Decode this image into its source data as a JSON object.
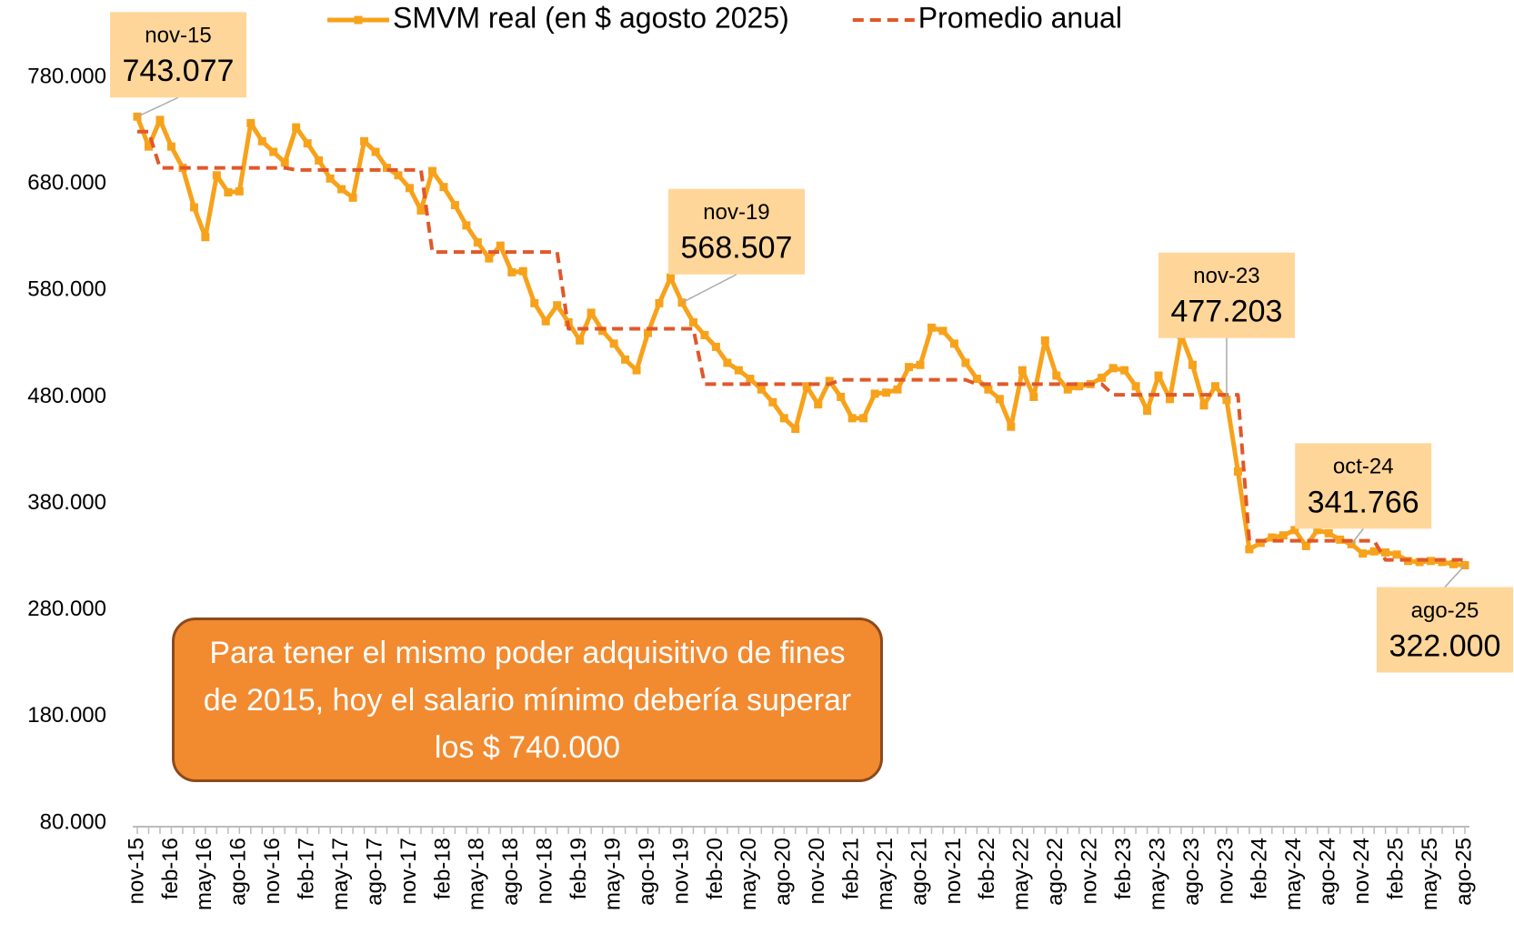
{
  "chart_data": {
    "type": "line",
    "categories": [
      "nov-15",
      null,
      null,
      "feb-16",
      null,
      null,
      "may-16",
      null,
      null,
      "ago-16",
      null,
      null,
      "nov-16",
      null,
      null,
      "feb-17",
      null,
      null,
      "may-17",
      null,
      null,
      "ago-17",
      null,
      null,
      "nov-17",
      null,
      null,
      "feb-18",
      null,
      null,
      "may-18",
      null,
      null,
      "ago-18",
      null,
      null,
      "nov-18",
      null,
      null,
      "feb-19",
      null,
      null,
      "may-19",
      null,
      null,
      "ago-19",
      null,
      null,
      "nov-19",
      null,
      null,
      "feb-20",
      null,
      null,
      "may-20",
      null,
      null,
      "ago-20",
      null,
      null,
      "nov-20",
      null,
      null,
      "feb-21",
      null,
      null,
      "may-21",
      null,
      null,
      "ago-21",
      null,
      null,
      "nov-21",
      null,
      null,
      "feb-22",
      null,
      null,
      "may-22",
      null,
      null,
      "ago-22",
      null,
      null,
      "nov-22",
      null,
      null,
      "feb-23",
      null,
      null,
      "may-23",
      null,
      null,
      "ago-23",
      null,
      null,
      "nov-23",
      null,
      null,
      "feb-24",
      null,
      null,
      "may-24",
      null,
      null,
      "ago-24",
      null,
      null,
      "nov-24",
      null,
      null,
      "feb-25",
      null,
      null,
      "may-25",
      null,
      null,
      "ago-25"
    ],
    "series": [
      {
        "name": "SMVM real (en $ agosto 2025)",
        "color": "#f7a21b",
        "marker": "square",
        "values": [
          743077,
          715000,
          740000,
          715000,
          695000,
          658000,
          630000,
          688000,
          672000,
          673000,
          737000,
          720000,
          710000,
          700000,
          733000,
          718000,
          702000,
          685000,
          675000,
          667000,
          720000,
          710000,
          695000,
          688000,
          676000,
          655000,
          692000,
          677000,
          660000,
          641000,
          625000,
          610000,
          622000,
          597000,
          598000,
          568000,
          551000,
          566000,
          550000,
          533000,
          559000,
          542000,
          530000,
          515000,
          505000,
          540000,
          568000,
          592000,
          568507,
          550000,
          538000,
          527000,
          512000,
          505000,
          497000,
          487000,
          475000,
          460000,
          450000,
          490000,
          473000,
          495000,
          480000,
          460000,
          460000,
          483000,
          484000,
          487000,
          508000,
          510000,
          545000,
          542000,
          530000,
          512000,
          497000,
          487000,
          478000,
          452000,
          505000,
          480000,
          533000,
          500000,
          487000,
          490000,
          492000,
          498000,
          507000,
          505000,
          490000,
          467000,
          500000,
          478000,
          538000,
          510000,
          472000,
          490000,
          477203,
          410000,
          337000,
          343000,
          348000,
          350000,
          355000,
          340000,
          355000,
          352000,
          346000,
          341766,
          333000,
          335000,
          334000,
          332000,
          326000,
          325000,
          326000,
          325000,
          323000,
          322000
        ],
        "point_labels": [
          "nov-15",
          null,
          null,
          null,
          null,
          null,
          null,
          null,
          null,
          null,
          null,
          null,
          null,
          null,
          null,
          null,
          null,
          null,
          null,
          null,
          null,
          null,
          null,
          null,
          null,
          null,
          null,
          null,
          null,
          null,
          null,
          null,
          null,
          null,
          null,
          null,
          null,
          null,
          null,
          null,
          null,
          null,
          null,
          null,
          null,
          null,
          null,
          null,
          "nov-19",
          null,
          null,
          null,
          null,
          null,
          null,
          null,
          null,
          null,
          null,
          null,
          null,
          null,
          null,
          null,
          null,
          null,
          null,
          null,
          null,
          null,
          null,
          null,
          null,
          null,
          null,
          null,
          null,
          null,
          null,
          null,
          null,
          null,
          null,
          null,
          null,
          null,
          null,
          null,
          null,
          null,
          null,
          null,
          null,
          null,
          null,
          null,
          "nov-23",
          null,
          null,
          null,
          null,
          null,
          null,
          null,
          null,
          null,
          null,
          "oct-24",
          null,
          null,
          null,
          null,
          null,
          null,
          null,
          null,
          null,
          "ago-25"
        ],
        "value_labels": [
          "743.077",
          null,
          null,
          null,
          null,
          null,
          null,
          null,
          null,
          null,
          null,
          null,
          null,
          null,
          null,
          null,
          null,
          null,
          null,
          null,
          null,
          null,
          null,
          null,
          null,
          null,
          null,
          null,
          null,
          null,
          null,
          null,
          null,
          null,
          null,
          null,
          null,
          null,
          null,
          null,
          null,
          null,
          null,
          null,
          null,
          null,
          null,
          null,
          "568.507",
          null,
          null,
          null,
          null,
          null,
          null,
          null,
          null,
          null,
          null,
          null,
          null,
          null,
          null,
          null,
          null,
          null,
          null,
          null,
          null,
          null,
          null,
          null,
          null,
          null,
          null,
          null,
          null,
          null,
          null,
          null,
          null,
          null,
          null,
          null,
          null,
          null,
          null,
          null,
          null,
          null,
          null,
          null,
          null,
          null,
          null,
          null,
          "477.203",
          null,
          null,
          null,
          null,
          null,
          null,
          null,
          null,
          null,
          null,
          "341.766",
          null,
          null,
          null,
          null,
          null,
          null,
          null,
          null,
          null,
          "322.000"
        ]
      },
      {
        "name": "Promedio anual",
        "color": "#e0582a",
        "dash": true,
        "values": [
          729000,
          729000,
          695000,
          695000,
          695000,
          695000,
          695000,
          695000,
          695000,
          695000,
          695000,
          695000,
          695000,
          695000,
          693000,
          693000,
          693000,
          693000,
          693000,
          693000,
          693000,
          693000,
          693000,
          693000,
          693000,
          693000,
          616000,
          616000,
          616000,
          616000,
          616000,
          616000,
          616000,
          616000,
          616000,
          616000,
          616000,
          616000,
          544000,
          544000,
          544000,
          544000,
          544000,
          544000,
          544000,
          544000,
          544000,
          544000,
          544000,
          544000,
          492000,
          492000,
          492000,
          492000,
          492000,
          492000,
          492000,
          492000,
          492000,
          492000,
          492000,
          492000,
          496000,
          496000,
          496000,
          496000,
          496000,
          496000,
          496000,
          496000,
          496000,
          496000,
          496000,
          496000,
          492000,
          492000,
          492000,
          492000,
          492000,
          492000,
          492000,
          492000,
          492000,
          492000,
          492000,
          492000,
          482000,
          482000,
          482000,
          482000,
          482000,
          482000,
          482000,
          482000,
          482000,
          482000,
          482000,
          482000,
          345000,
          345000,
          345000,
          345000,
          345000,
          345000,
          345000,
          345000,
          345000,
          345000,
          345000,
          345000,
          327000,
          327000,
          327000,
          327000,
          327000,
          327000,
          327000,
          327000
        ]
      }
    ],
    "ylim": [
      80000,
      780000
    ],
    "yticks": [
      {
        "value": 80000,
        "label": "80.000"
      },
      {
        "value": 180000,
        "label": "180.000"
      },
      {
        "value": 280000,
        "label": "280.000"
      },
      {
        "value": 380000,
        "label": "380.000"
      },
      {
        "value": 480000,
        "label": "480.000"
      },
      {
        "value": 580000,
        "label": "580.000"
      },
      {
        "value": 680000,
        "label": "680.000"
      },
      {
        "value": 780000,
        "label": "780.000"
      }
    ],
    "grid": false,
    "legend": "top",
    "annotation": "Para tener el mismo poder adquisitivo de fines de 2015, hoy el salario mínimo debería superar los $ 740.000"
  }
}
